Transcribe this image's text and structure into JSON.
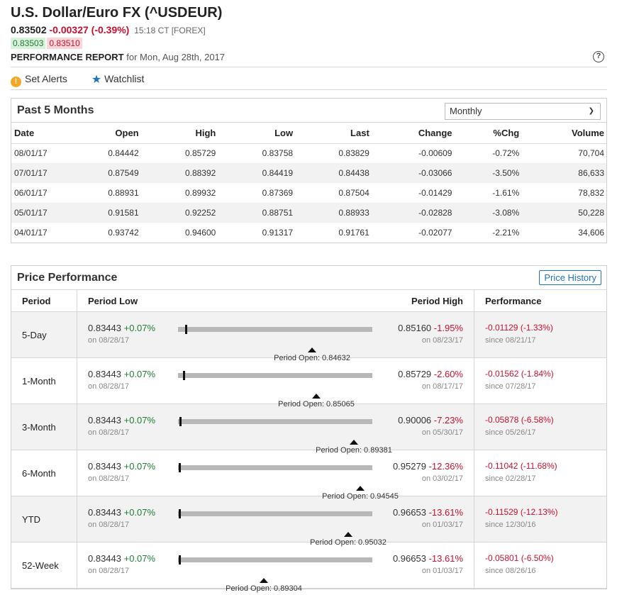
{
  "header": {
    "title": "U.S. Dollar/Euro FX (^USDEUR)",
    "last": "0.83502",
    "change": "-0.00327 (-0.39%)",
    "time": "15:18 CT [FOREX]",
    "bid": "0.83503",
    "ask": "0.83510",
    "report_label": "PERFORMANCE REPORT",
    "report_date": "for Mon, Aug 28th, 2017",
    "help": "?"
  },
  "actions": {
    "alerts": "Set Alerts",
    "watchlist": "Watchlist",
    "alert_icon": "!",
    "star_icon": "★"
  },
  "past": {
    "title": "Past 5 Months",
    "select_value": "Monthly",
    "columns": [
      "Date",
      "Open",
      "High",
      "Low",
      "Last",
      "Change",
      "%Chg",
      "Volume"
    ],
    "rows": [
      [
        "08/01/17",
        "0.84442",
        "0.85729",
        "0.83758",
        "0.83829",
        "-0.00609",
        "-0.72%",
        "70,704"
      ],
      [
        "07/01/17",
        "0.87549",
        "0.88392",
        "0.84419",
        "0.84438",
        "-0.03066",
        "-3.50%",
        "86,633"
      ],
      [
        "06/01/17",
        "0.88931",
        "0.89932",
        "0.87369",
        "0.87504",
        "-0.01429",
        "-1.61%",
        "78,832"
      ],
      [
        "05/01/17",
        "0.91581",
        "0.92252",
        "0.88751",
        "0.88933",
        "-0.02828",
        "-3.08%",
        "50,228"
      ],
      [
        "04/01/17",
        "0.93742",
        "0.94600",
        "0.91317",
        "0.91761",
        "-0.02077",
        "-2.21%",
        "34,606"
      ]
    ]
  },
  "perf": {
    "title": "Price Performance",
    "history_btn": "Price History",
    "col_period": "Period",
    "col_low": "Period Low",
    "col_high": "Period High",
    "col_perf": "Performance",
    "rows": [
      {
        "period": "5-Day",
        "low": "0.83443",
        "low_chg": "+0.07%",
        "low_date": "on 08/28/17",
        "high": "0.85160",
        "high_chg": "-1.95%",
        "high_date": "on 08/23/17",
        "open_label": "Period Open: 0.84632",
        "last_pos": 0.035,
        "open_pos": 0.69,
        "perf": "-0.01129 (-1.33%)",
        "since": "since 08/21/17"
      },
      {
        "period": "1-Month",
        "low": "0.83443",
        "low_chg": "+0.07%",
        "low_date": "on 08/28/17",
        "high": "0.85729",
        "high_chg": "-2.60%",
        "high_date": "on 08/17/17",
        "open_label": "Period Open: 0.85065",
        "last_pos": 0.026,
        "open_pos": 0.71,
        "perf": "-0.01562 (-1.84%)",
        "since": "since 07/28/17"
      },
      {
        "period": "3-Month",
        "low": "0.83443",
        "low_chg": "+0.07%",
        "low_date": "on 08/28/17",
        "high": "0.90006",
        "high_chg": "-7.23%",
        "high_date": "on 05/30/17",
        "open_label": "Period Open: 0.89381",
        "last_pos": 0.009,
        "open_pos": 0.905,
        "perf": "-0.05878 (-6.58%)",
        "since": "since 05/26/17"
      },
      {
        "period": "6-Month",
        "low": "0.83443",
        "low_chg": "+0.07%",
        "low_date": "on 08/28/17",
        "high": "0.95279",
        "high_chg": "-12.36%",
        "high_date": "on 03/02/17",
        "open_label": "Period Open: 0.94545",
        "last_pos": 0.005,
        "open_pos": 0.938,
        "perf": "-0.11042 (-11.68%)",
        "since": "since 02/28/17"
      },
      {
        "period": "YTD",
        "low": "0.83443",
        "low_chg": "+0.07%",
        "low_date": "on 08/28/17",
        "high": "0.96653",
        "high_chg": "-13.61%",
        "high_date": "on 01/03/17",
        "open_label": "Period Open: 0.95032",
        "last_pos": 0.004,
        "open_pos": 0.877,
        "perf": "-0.11529 (-12.13%)",
        "since": "since 12/30/16"
      },
      {
        "period": "52-Week",
        "low": "0.83443",
        "low_chg": "+0.07%",
        "low_date": "on 08/28/17",
        "high": "0.96653",
        "high_chg": "-13.61%",
        "high_date": "on 01/03/17",
        "open_label": "Period Open: 0.89304",
        "last_pos": 0.004,
        "open_pos": 0.44,
        "perf": "-0.05801 (-6.50%)",
        "since": "since 08/26/16"
      }
    ]
  }
}
